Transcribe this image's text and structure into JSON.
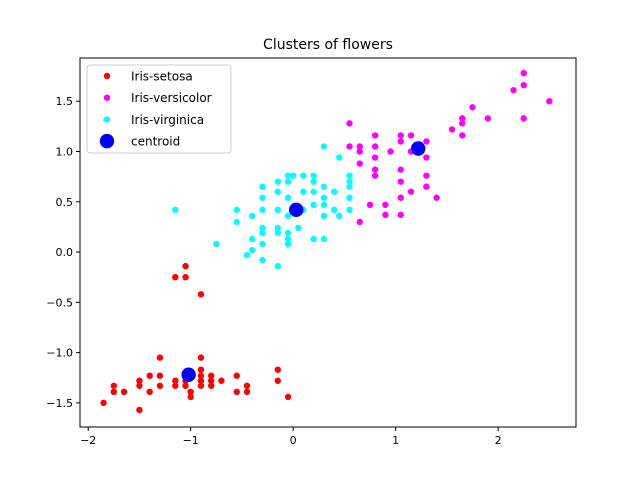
{
  "chart_data": {
    "type": "scatter",
    "title": "Clusters of flowers",
    "xlabel": "",
    "ylabel": "",
    "xlim": [
      -2.08,
      2.76
    ],
    "ylim": [
      -1.74,
      1.93
    ],
    "xticks": [
      -2,
      -1,
      0,
      1,
      2
    ],
    "yticks": [
      -1.5,
      -1.0,
      -0.5,
      0.0,
      0.5,
      1.0,
      1.5
    ],
    "xtick_labels": [
      "−2",
      "−1",
      "0",
      "1",
      "2"
    ],
    "ytick_labels": [
      "−1.5",
      "−1.0",
      "−0.5",
      "0.0",
      "0.5",
      "1.0",
      "1.5"
    ],
    "grid": false,
    "legend_position": "top-left",
    "series": [
      {
        "name": "Iris-setosa",
        "color": "#ff0000",
        "marker": "small-dot",
        "points": [
          [
            -1.85,
            -1.5
          ],
          [
            -1.75,
            -1.33
          ],
          [
            -1.75,
            -1.39
          ],
          [
            -1.65,
            -1.39
          ],
          [
            -1.5,
            -1.28
          ],
          [
            -1.5,
            -1.33
          ],
          [
            -1.5,
            -1.57
          ],
          [
            -1.4,
            -1.23
          ],
          [
            -1.4,
            -1.39
          ],
          [
            -1.3,
            -1.05
          ],
          [
            -1.3,
            -1.23
          ],
          [
            -1.3,
            -1.33
          ],
          [
            -1.15,
            -1.28
          ],
          [
            -1.15,
            -1.33
          ],
          [
            -1.05,
            -1.23
          ],
          [
            -1.05,
            -1.28
          ],
          [
            -1.05,
            -1.33
          ],
          [
            -1.0,
            -1.39
          ],
          [
            -1.0,
            -1.44
          ],
          [
            -0.9,
            -1.05
          ],
          [
            -0.9,
            -1.17
          ],
          [
            -0.9,
            -1.23
          ],
          [
            -0.9,
            -1.28
          ],
          [
            -0.9,
            -1.33
          ],
          [
            -0.8,
            -1.23
          ],
          [
            -0.8,
            -1.28
          ],
          [
            -0.8,
            -1.33
          ],
          [
            -0.7,
            -1.28
          ],
          [
            -0.55,
            -1.23
          ],
          [
            -0.55,
            -1.39
          ],
          [
            -0.45,
            -1.33
          ],
          [
            -0.45,
            -1.39
          ],
          [
            -0.15,
            -1.17
          ],
          [
            -0.15,
            -1.28
          ],
          [
            -0.05,
            -1.44
          ],
          [
            -1.15,
            -0.25
          ],
          [
            -1.05,
            -0.14
          ],
          [
            -1.05,
            -0.25
          ],
          [
            -0.9,
            -0.42
          ]
        ]
      },
      {
        "name": "Iris-versicolor",
        "color": "#ff00ff",
        "marker": "small-dot",
        "points": [
          [
            2.25,
            1.78
          ],
          [
            2.25,
            1.66
          ],
          [
            2.15,
            1.61
          ],
          [
            2.5,
            1.5
          ],
          [
            1.75,
            1.44
          ],
          [
            1.65,
            1.33
          ],
          [
            1.65,
            1.28
          ],
          [
            1.9,
            1.33
          ],
          [
            2.25,
            1.33
          ],
          [
            1.55,
            1.22
          ],
          [
            1.65,
            1.16
          ],
          [
            1.3,
            1.1
          ],
          [
            1.25,
            1.05
          ],
          [
            1.25,
            1.0
          ],
          [
            1.15,
            1.16
          ],
          [
            1.05,
            1.16
          ],
          [
            1.05,
            1.1
          ],
          [
            0.55,
            1.28
          ],
          [
            0.55,
            1.05
          ],
          [
            0.8,
            1.16
          ],
          [
            0.8,
            1.05
          ],
          [
            0.65,
            1.05
          ],
          [
            0.65,
            1.0
          ],
          [
            0.8,
            0.94
          ],
          [
            0.95,
            1.0
          ],
          [
            1.15,
            1.0
          ],
          [
            1.3,
            0.94
          ],
          [
            0.65,
            0.88
          ],
          [
            0.8,
            0.82
          ],
          [
            0.8,
            0.76
          ],
          [
            1.05,
            0.82
          ],
          [
            1.05,
            0.7
          ],
          [
            1.3,
            0.76
          ],
          [
            1.3,
            0.65
          ],
          [
            1.15,
            0.6
          ],
          [
            1.05,
            0.54
          ],
          [
            1.4,
            0.54
          ],
          [
            0.75,
            0.47
          ],
          [
            0.9,
            0.47
          ],
          [
            0.9,
            0.37
          ],
          [
            1.05,
            0.37
          ],
          [
            0.65,
            0.3
          ]
        ]
      },
      {
        "name": "Iris-virginica",
        "color": "#00ffff",
        "marker": "small-dot",
        "points": [
          [
            0.3,
            1.05
          ],
          [
            0.45,
            0.94
          ],
          [
            0.55,
            0.76
          ],
          [
            0.55,
            0.7
          ],
          [
            0.55,
            0.65
          ],
          [
            0.55,
            0.54
          ],
          [
            0.55,
            0.42
          ],
          [
            0.4,
            0.6
          ],
          [
            0.4,
            0.42
          ],
          [
            0.45,
            0.36
          ],
          [
            0.3,
            0.65
          ],
          [
            0.3,
            0.54
          ],
          [
            0.3,
            0.47
          ],
          [
            0.2,
            0.76
          ],
          [
            0.2,
            0.7
          ],
          [
            0.2,
            0.6
          ],
          [
            0.2,
            0.47
          ],
          [
            0.1,
            0.76
          ],
          [
            0.1,
            0.6
          ],
          [
            0.1,
            0.42
          ],
          [
            0.0,
            0.76
          ],
          [
            -0.05,
            0.76
          ],
          [
            -0.05,
            0.7
          ],
          [
            -0.15,
            0.7
          ],
          [
            -0.3,
            0.65
          ],
          [
            -0.15,
            0.6
          ],
          [
            -0.05,
            0.54
          ],
          [
            -0.05,
            0.36
          ],
          [
            -0.05,
            0.19
          ],
          [
            -0.05,
            0.13
          ],
          [
            -0.05,
            0.08
          ],
          [
            0.05,
            0.24
          ],
          [
            0.2,
            0.13
          ],
          [
            0.3,
            0.13
          ],
          [
            0.3,
            0.36
          ],
          [
            -0.15,
            0.42
          ],
          [
            -0.3,
            0.42
          ],
          [
            -0.3,
            0.54
          ],
          [
            -0.3,
            0.24
          ],
          [
            -0.3,
            0.19
          ],
          [
            -0.3,
            0.08
          ],
          [
            -0.15,
            0.24
          ],
          [
            -0.15,
            0.19
          ],
          [
            -0.15,
            -0.14
          ],
          [
            -0.3,
            -0.08
          ],
          [
            -0.4,
            0.36
          ],
          [
            -0.4,
            0.13
          ],
          [
            -0.4,
            0.02
          ],
          [
            -0.55,
            0.42
          ],
          [
            -0.55,
            0.3
          ],
          [
            -0.75,
            0.08
          ],
          [
            -0.45,
            -0.03
          ],
          [
            -1.15,
            0.42
          ]
        ]
      },
      {
        "name": "centroid",
        "color": "#0000ff",
        "marker": "large-dot",
        "points": [
          [
            -1.02,
            -1.22
          ],
          [
            0.03,
            0.42
          ],
          [
            1.22,
            1.03
          ]
        ]
      }
    ]
  }
}
